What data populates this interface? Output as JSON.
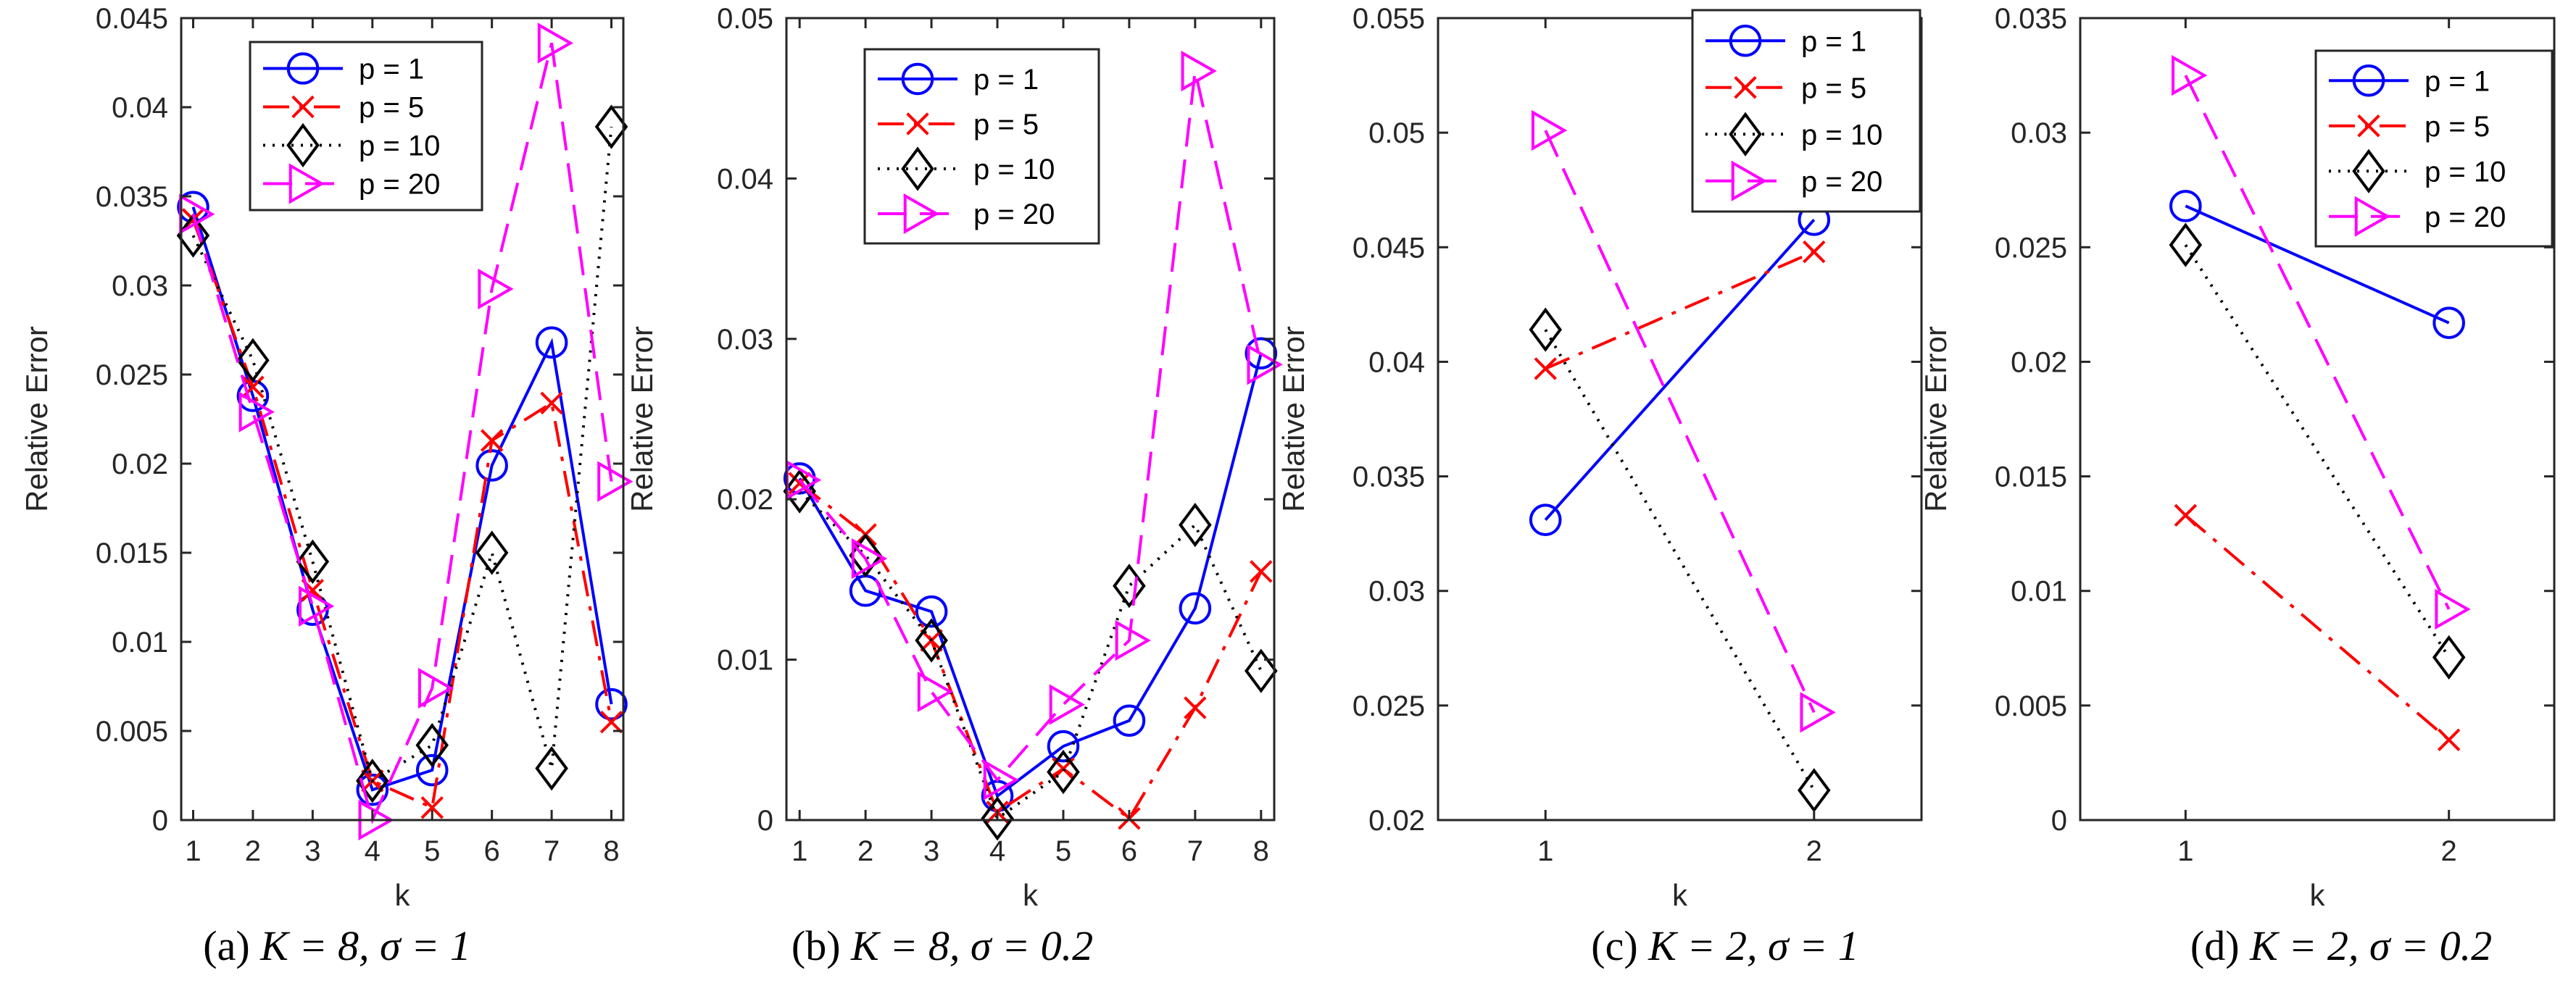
{
  "figure": {
    "captions": [
      {
        "label": "(a)",
        "math": "K = 8, σ = 1"
      },
      {
        "label": "(b)",
        "math": "K = 8, σ = 0.2"
      },
      {
        "label": "(c)",
        "math": "K = 2, σ = 1"
      },
      {
        "label": "(d)",
        "math": "K = 2, σ = 0.2"
      }
    ]
  },
  "styles": {
    "p = 1": {
      "color": "#0000ff",
      "marker": "circle",
      "dash": "solid"
    },
    "p = 5": {
      "color": "#ff0000",
      "marker": "x",
      "dash": "dashdot"
    },
    "p = 10": {
      "color": "#000000",
      "marker": "diamond",
      "dash": "dotted"
    },
    "p = 20": {
      "color": "#ff00ff",
      "marker": "triangle-right",
      "dash": "dashed"
    }
  },
  "chart_data": [
    {
      "type": "line",
      "title": "",
      "xlabel": "k",
      "ylabel": "Relative Error",
      "xlim": [
        0.8,
        8.2
      ],
      "ylim": [
        0,
        0.045
      ],
      "xticks": [
        1,
        2,
        3,
        4,
        5,
        6,
        7,
        8
      ],
      "yticks": [
        0,
        0.005,
        0.01,
        0.015,
        0.02,
        0.025,
        0.03,
        0.035,
        0.04,
        0.045
      ],
      "ytick_labels": [
        "0",
        "0.005",
        "0.01",
        "0.015",
        "0.02",
        "0.025",
        "0.03",
        "0.035",
        "0.04",
        "0.045"
      ],
      "legend": "top-center",
      "x": [
        1,
        2,
        3,
        4,
        5,
        6,
        7,
        8
      ],
      "series": [
        {
          "name": "p = 1",
          "values": [
            0.0344,
            0.0238,
            0.0118,
            0.0017,
            0.0028,
            0.0199,
            0.0268,
            0.0065
          ]
        },
        {
          "name": "p = 5",
          "values": [
            0.0337,
            0.0243,
            0.0129,
            0.0022,
            0.0007,
            0.0213,
            0.0234,
            0.0055
          ]
        },
        {
          "name": "p = 10",
          "values": [
            0.0328,
            0.0258,
            0.0145,
            0.0022,
            0.0042,
            0.015,
            0.0029,
            0.0389
          ]
        },
        {
          "name": "p = 20",
          "values": [
            0.034,
            0.0229,
            0.012,
            0.0,
            0.0074,
            0.0298,
            0.0436,
            0.019
          ]
        }
      ]
    },
    {
      "type": "line",
      "title": "",
      "xlabel": "k",
      "ylabel": "Relative Error",
      "xlim": [
        0.8,
        8.2
      ],
      "ylim": [
        0,
        0.05
      ],
      "xticks": [
        1,
        2,
        3,
        4,
        5,
        6,
        7,
        8
      ],
      "yticks": [
        0,
        0.01,
        0.02,
        0.03,
        0.04,
        0.05
      ],
      "ytick_labels": [
        "0",
        "0.01",
        "0.02",
        "0.03",
        "0.04",
        "0.05"
      ],
      "legend": "top-center",
      "x": [
        1,
        2,
        3,
        4,
        5,
        6,
        7,
        8
      ],
      "series": [
        {
          "name": "p = 1",
          "values": [
            0.0213,
            0.0143,
            0.013,
            0.0015,
            0.0046,
            0.0062,
            0.0132,
            0.0291
          ]
        },
        {
          "name": "p = 5",
          "values": [
            0.021,
            0.0178,
            0.0112,
            0.0005,
            0.0032,
            0.0001,
            0.007,
            0.0155
          ]
        },
        {
          "name": "p = 10",
          "values": [
            0.0205,
            0.0165,
            0.0112,
            0.0001,
            0.003,
            0.0146,
            0.0184,
            0.0093
          ]
        },
        {
          "name": "p = 20",
          "values": [
            0.0212,
            0.0163,
            0.008,
            0.0025,
            0.0072,
            0.0112,
            0.0467,
            0.0284
          ]
        }
      ]
    },
    {
      "type": "line",
      "title": "",
      "xlabel": "k",
      "ylabel": "Relative Error",
      "xlim": [
        0.6,
        2.4
      ],
      "ylim": [
        0.02,
        0.055
      ],
      "xticks": [
        1,
        2
      ],
      "yticks": [
        0.02,
        0.025,
        0.03,
        0.035,
        0.04,
        0.045,
        0.05,
        0.055
      ],
      "ytick_labels": [
        "0.02",
        "0.025",
        "0.03",
        "0.035",
        "0.04",
        "0.045",
        "0.05",
        "0.055"
      ],
      "legend": "top-right",
      "x": [
        1,
        2
      ],
      "series": [
        {
          "name": "p = 1",
          "values": [
            0.0331,
            0.0462
          ]
        },
        {
          "name": "p = 5",
          "values": [
            0.0397,
            0.0448
          ]
        },
        {
          "name": "p = 10",
          "values": [
            0.0414,
            0.0213
          ]
        },
        {
          "name": "p = 20",
          "values": [
            0.0501,
            0.0247
          ]
        }
      ]
    },
    {
      "type": "line",
      "title": "",
      "xlabel": "k",
      "ylabel": "Relative Error",
      "xlim": [
        0.6,
        2.4
      ],
      "ylim": [
        0,
        0.035
      ],
      "xticks": [
        1,
        2
      ],
      "yticks": [
        0,
        0.005,
        0.01,
        0.015,
        0.02,
        0.025,
        0.03,
        0.035
      ],
      "ytick_labels": [
        "0",
        "0.005",
        "0.01",
        "0.015",
        "0.02",
        "0.025",
        "0.03",
        "0.035"
      ],
      "legend": "top-right",
      "x": [
        1,
        2
      ],
      "series": [
        {
          "name": "p = 1",
          "values": [
            0.0268,
            0.0217
          ]
        },
        {
          "name": "p = 5",
          "values": [
            0.0133,
            0.0035
          ]
        },
        {
          "name": "p = 10",
          "values": [
            0.0251,
            0.0071
          ]
        },
        {
          "name": "p = 20",
          "values": [
            0.0325,
            0.0092
          ]
        }
      ]
    }
  ]
}
